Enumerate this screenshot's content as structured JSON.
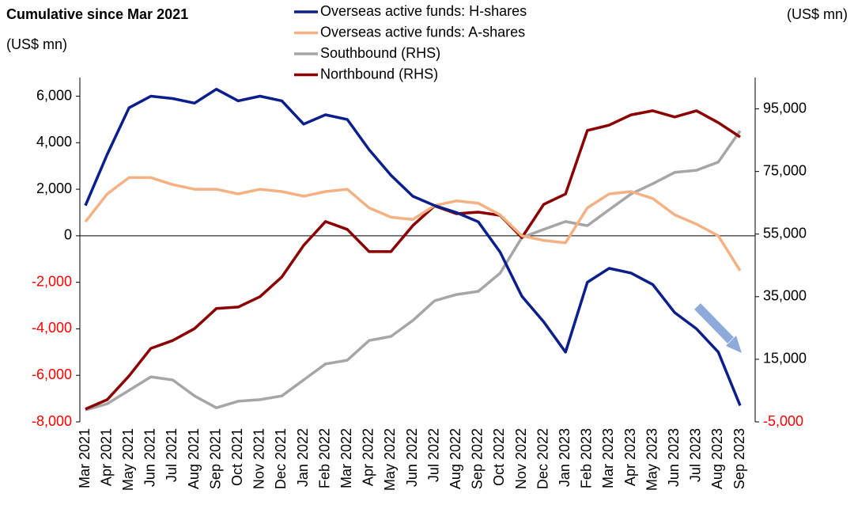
{
  "chart_data": {
    "type": "line",
    "title": "Cumulative since Mar 2021",
    "y_label": "(US$ mn)",
    "y2_label": "(US$ mn)",
    "categories": [
      "Mar 2021",
      "Apr 2021",
      "May 2021",
      "Jun 2021",
      "Jul 2021",
      "Aug 2021",
      "Sep 2021",
      "Oct 2021",
      "Nov 2021",
      "Dec 2021",
      "Jan 2022",
      "Feb 2022",
      "Mar 2022",
      "Apr 2022",
      "May 2022",
      "Jun 2022",
      "Jul 2022",
      "Aug 2022",
      "Sep 2022",
      "Oct 2022",
      "Nov 2022",
      "Dec 2022",
      "Jan 2023",
      "Feb 2023",
      "Mar 2023",
      "Apr 2023",
      "May 2023",
      "Jun 2023",
      "Jul 2023",
      "Aug 2023",
      "Sep 2023"
    ],
    "series": [
      {
        "name": "Overseas active funds: H-shares",
        "color": "#0a1e8c",
        "values": [
          1300,
          3500,
          5500,
          6000,
          5900,
          5700,
          6300,
          5800,
          6000,
          5800,
          4800,
          5200,
          5000,
          3700,
          2600,
          1700,
          1300,
          1000,
          600,
          -700,
          -2600,
          -3700,
          -5000,
          -2000,
          -1400,
          -1600,
          -2100,
          -3300,
          -4000,
          -5000,
          -7300
        ]
      },
      {
        "name": "Overseas active funds: A-shares",
        "color": "#f4b183",
        "values": [
          600,
          1800,
          2500,
          2500,
          2200,
          2000,
          2000,
          1800,
          2000,
          1900,
          1700,
          1900,
          2000,
          1200,
          800,
          700,
          1300,
          1500,
          1400,
          900,
          0,
          -200,
          -300,
          1200,
          1800,
          1900,
          1600,
          900,
          500,
          0,
          -1500
        ]
      },
      {
        "name": "Southbound (RHS)",
        "color": "#a6a6a6",
        "axis": "y2",
        "values": [
          -1200,
          800,
          5100,
          9400,
          8400,
          3300,
          -500,
          1600,
          2100,
          3300,
          8400,
          13500,
          14700,
          21000,
          22300,
          27400,
          33700,
          35700,
          36700,
          42500,
          53900,
          56500,
          59000,
          57700,
          62800,
          67800,
          71100,
          74700,
          75400,
          78000,
          88000
        ]
      },
      {
        "name": "Northbound (RHS)",
        "color": "#8b0000",
        "axis": "y2",
        "values": [
          -900,
          2100,
          9700,
          18500,
          21000,
          24800,
          31200,
          31700,
          35000,
          41300,
          51400,
          59000,
          56500,
          49400,
          49400,
          57700,
          64000,
          61500,
          62000,
          61000,
          53900,
          64500,
          67800,
          88100,
          89800,
          93100,
          94400,
          92400,
          94400,
          90600,
          86000
        ]
      }
    ],
    "ylim": [
      -8000,
      6800
    ],
    "yticks": [
      {
        "value": -8000,
        "label": "-8,000"
      },
      {
        "value": -6000,
        "label": "-6,000"
      },
      {
        "value": -4000,
        "label": "-4,000"
      },
      {
        "value": -2000,
        "label": "-2,000"
      },
      0,
      {
        "value": 2000,
        "label": "2,000"
      },
      {
        "value": 4000,
        "label": "4,000"
      },
      {
        "value": 6000,
        "label": "6,000"
      }
    ],
    "y2lim": [
      -5000,
      105000
    ],
    "y2ticks": [
      {
        "value": -5000,
        "label": "-5,000"
      },
      {
        "value": 15000,
        "label": "15,000"
      },
      {
        "value": 35000,
        "label": "35,000"
      },
      {
        "value": 55000,
        "label": "55,000"
      },
      {
        "value": 75000,
        "label": "75,000"
      },
      {
        "value": 95000,
        "label": "95,000"
      }
    ],
    "negative_tick_color": "#ff0000",
    "grid": false,
    "legend": "top"
  }
}
